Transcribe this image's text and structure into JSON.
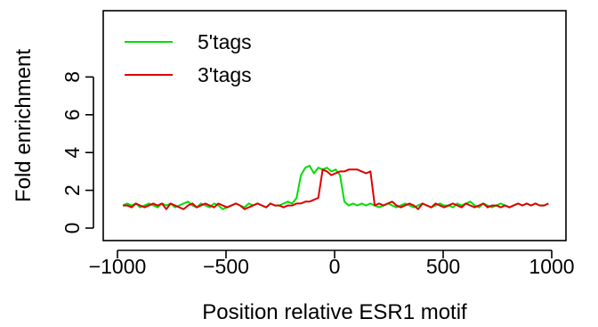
{
  "chart_data": {
    "type": "line",
    "title": "",
    "xlabel": "Position relative ESR1 motif",
    "ylabel": "Fold enrichment",
    "xlim": [
      -1000,
      1000
    ],
    "ylim": [
      0,
      11.5
    ],
    "xticks": [
      -1000,
      -500,
      0,
      500,
      1000
    ],
    "xtick_labels": [
      "−1000",
      "−500",
      "0",
      "500",
      "1000"
    ],
    "yticks": [
      0,
      2,
      4,
      6,
      8
    ],
    "ytick_labels": [
      "0",
      "2",
      "4",
      "6",
      "8"
    ],
    "grid": false,
    "legend_position": "top-left",
    "series": [
      {
        "name": "5'tags",
        "color": "#00DD00",
        "x": [
          -975,
          -955,
          -935,
          -915,
          -895,
          -875,
          -855,
          -835,
          -815,
          -795,
          -775,
          -755,
          -735,
          -715,
          -695,
          -675,
          -655,
          -635,
          -615,
          -595,
          -575,
          -555,
          -535,
          -515,
          -495,
          -475,
          -455,
          -435,
          -415,
          -395,
          -375,
          -355,
          -335,
          -315,
          -295,
          -275,
          -255,
          -235,
          -215,
          -195,
          -175,
          -155,
          -135,
          -115,
          -95,
          -75,
          -55,
          -35,
          -15,
          5,
          25,
          45,
          65,
          85,
          105,
          125,
          145,
          165,
          185,
          205,
          225,
          245,
          265,
          285,
          305,
          325,
          345,
          365,
          385,
          405,
          425,
          445,
          465,
          485,
          505,
          525,
          545,
          565,
          585,
          605,
          625,
          645,
          665,
          685,
          705,
          725,
          745,
          765,
          785,
          805,
          825,
          845,
          865,
          885,
          905,
          925,
          945,
          965,
          985
        ],
        "y": [
          1.2,
          1.3,
          1.2,
          1.3,
          1.1,
          1.2,
          1.3,
          1.2,
          1.1,
          1.3,
          1.2,
          1.3,
          1.1,
          1.2,
          1.3,
          1.4,
          1.2,
          1.1,
          1.3,
          1.2,
          1.1,
          1.3,
          1.2,
          1.0,
          1.1,
          1.2,
          1.3,
          1.2,
          1.1,
          1.3,
          1.2,
          1.3,
          1.2,
          1.1,
          1.3,
          1.2,
          1.2,
          1.3,
          1.4,
          1.3,
          1.6,
          2.8,
          3.2,
          3.3,
          2.9,
          3.2,
          3.1,
          3.2,
          3.0,
          3.1,
          2.8,
          1.4,
          1.2,
          1.3,
          1.2,
          1.3,
          1.2,
          1.3,
          1.2,
          1.1,
          1.2,
          1.3,
          1.2,
          1.1,
          1.2,
          1.3,
          1.2,
          1.1,
          1.2,
          1.3,
          1.2,
          1.1,
          1.2,
          1.3,
          1.2,
          1.2,
          1.1,
          1.3,
          1.2,
          1.3,
          1.4,
          1.2,
          1.1,
          1.3,
          1.2,
          1.1,
          1.2,
          1.3,
          1.2,
          1.1,
          1.2,
          1.3,
          1.2,
          1.3,
          1.2,
          1.3,
          1.2,
          1.2,
          1.3
        ]
      },
      {
        "name": "3'tags",
        "color": "#DD0000",
        "x": [
          -975,
          -955,
          -935,
          -915,
          -895,
          -875,
          -855,
          -835,
          -815,
          -795,
          -775,
          -755,
          -735,
          -715,
          -695,
          -675,
          -655,
          -635,
          -615,
          -595,
          -575,
          -555,
          -535,
          -515,
          -495,
          -475,
          -455,
          -435,
          -415,
          -395,
          -375,
          -355,
          -335,
          -315,
          -295,
          -275,
          -255,
          -235,
          -215,
          -195,
          -175,
          -155,
          -135,
          -115,
          -95,
          -75,
          -55,
          -35,
          -15,
          5,
          25,
          45,
          65,
          85,
          105,
          125,
          145,
          165,
          185,
          205,
          225,
          245,
          265,
          285,
          305,
          325,
          345,
          365,
          385,
          405,
          425,
          445,
          465,
          485,
          505,
          525,
          545,
          565,
          585,
          605,
          625,
          645,
          665,
          685,
          705,
          725,
          745,
          765,
          785,
          805,
          825,
          845,
          865,
          885,
          905,
          925,
          945,
          965,
          985
        ],
        "y": [
          1.2,
          1.2,
          1.1,
          1.3,
          1.2,
          1.1,
          1.2,
          1.3,
          1.2,
          1.3,
          1.0,
          1.3,
          1.2,
          1.1,
          1.0,
          1.2,
          1.3,
          1.1,
          1.2,
          1.3,
          1.2,
          1.1,
          1.3,
          1.2,
          1.1,
          1.2,
          1.3,
          1.2,
          1.0,
          1.1,
          1.2,
          1.3,
          1.2,
          1.1,
          1.3,
          1.2,
          1.2,
          1.1,
          1.2,
          1.2,
          1.3,
          1.3,
          1.4,
          1.4,
          1.5,
          1.6,
          3.1,
          3.0,
          2.8,
          2.9,
          3.0,
          3.0,
          3.1,
          3.1,
          3.1,
          3.0,
          2.9,
          3.0,
          1.2,
          1.3,
          1.2,
          1.3,
          1.4,
          1.2,
          1.1,
          1.2,
          1.3,
          1.2,
          1.0,
          1.3,
          1.2,
          1.1,
          1.3,
          1.2,
          1.1,
          1.2,
          1.3,
          1.2,
          1.1,
          1.3,
          1.2,
          1.1,
          1.2,
          1.3,
          1.1,
          1.2,
          1.2,
          1.1,
          1.2,
          1.1,
          1.2,
          1.3,
          1.2,
          1.3,
          1.2,
          1.3,
          1.2,
          1.2,
          1.3
        ]
      }
    ]
  }
}
